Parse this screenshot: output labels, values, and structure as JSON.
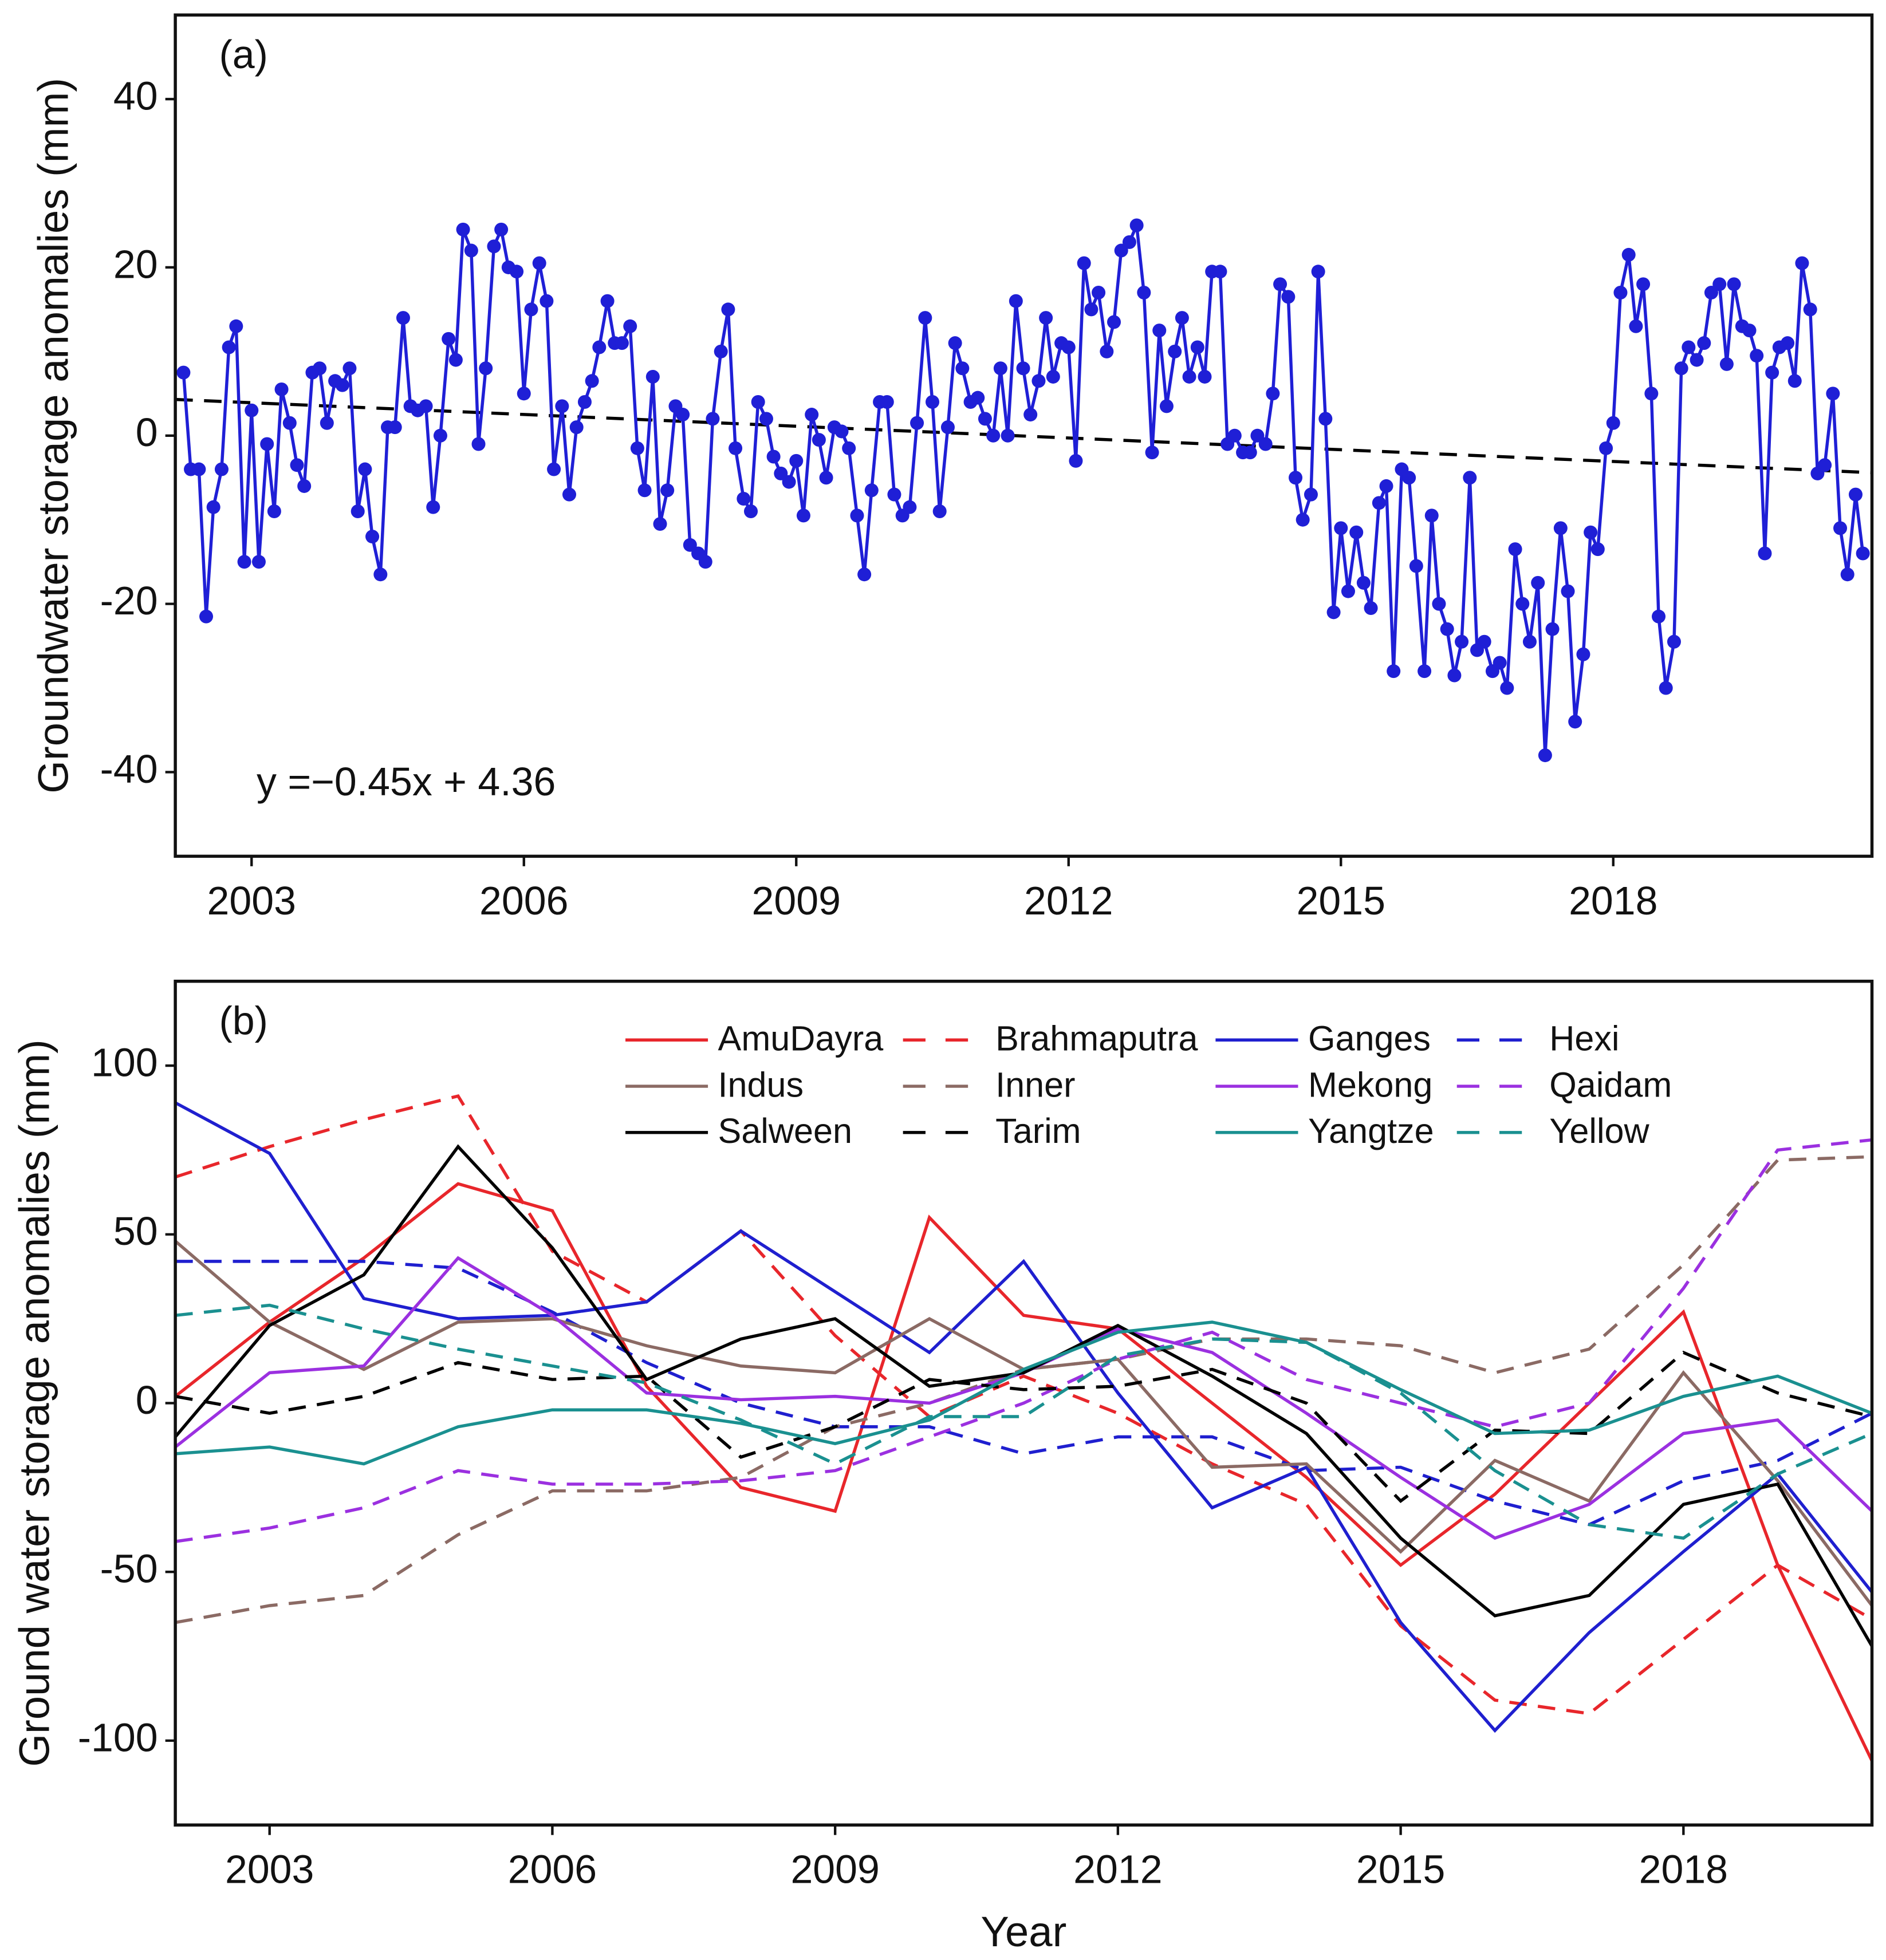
{
  "chart_data": [
    {
      "type": "line",
      "panel_label": "(a)",
      "ylabel": "Groundwater storage anomalies (mm)",
      "annotation": "y =−0.45x + 4.36",
      "color": "#1f1fd6",
      "markers": true,
      "xlim": [
        2002.16,
        2020.85
      ],
      "xticks": [
        2003,
        2006,
        2009,
        2012,
        2015,
        2018
      ],
      "ylim": [
        -50,
        50
      ],
      "yticks": [
        -40,
        -20,
        0,
        20,
        40
      ],
      "x": [
        2002.25,
        2002.33,
        2002.42,
        2002.5,
        2002.58,
        2002.67,
        2002.75,
        2002.83,
        2002.92,
        2003,
        2003.08,
        2003.17,
        2003.25,
        2003.33,
        2003.42,
        2003.5,
        2003.58,
        2003.67,
        2003.75,
        2003.83,
        2003.92,
        2004,
        2004.08,
        2004.17,
        2004.25,
        2004.33,
        2004.42,
        2004.5,
        2004.58,
        2004.67,
        2004.75,
        2004.83,
        2004.92,
        2005,
        2005.08,
        2005.17,
        2005.25,
        2005.33,
        2005.42,
        2005.5,
        2005.58,
        2005.67,
        2005.75,
        2005.83,
        2005.92,
        2006,
        2006.08,
        2006.17,
        2006.25,
        2006.33,
        2006.42,
        2006.5,
        2006.58,
        2006.67,
        2006.75,
        2006.83,
        2006.92,
        2007,
        2007.08,
        2007.17,
        2007.25,
        2007.33,
        2007.42,
        2007.5,
        2007.58,
        2007.67,
        2007.75,
        2007.83,
        2007.92,
        2008,
        2008.08,
        2008.17,
        2008.25,
        2008.33,
        2008.42,
        2008.5,
        2008.58,
        2008.67,
        2008.75,
        2008.83,
        2008.92,
        2009,
        2009.08,
        2009.17,
        2009.25,
        2009.33,
        2009.42,
        2009.5,
        2009.58,
        2009.67,
        2009.75,
        2009.83,
        2009.92,
        2010,
        2010.08,
        2010.17,
        2010.25,
        2010.33,
        2010.42,
        2010.5,
        2010.58,
        2010.67,
        2010.75,
        2010.83,
        2010.92,
        2011,
        2011.08,
        2011.17,
        2011.25,
        2011.33,
        2011.42,
        2011.5,
        2011.58,
        2011.67,
        2011.75,
        2011.83,
        2011.92,
        2012,
        2012.08,
        2012.17,
        2012.25,
        2012.33,
        2012.42,
        2012.5,
        2012.58,
        2012.67,
        2012.75,
        2012.83,
        2012.92,
        2013,
        2013.08,
        2013.17,
        2013.25,
        2013.33,
        2013.42,
        2013.5,
        2013.58,
        2013.67,
        2013.75,
        2013.83,
        2013.92,
        2014,
        2014.08,
        2014.17,
        2014.25,
        2014.33,
        2014.42,
        2014.5,
        2014.58,
        2014.67,
        2014.75,
        2014.83,
        2014.92,
        2015,
        2015.08,
        2015.17,
        2015.25,
        2015.33,
        2015.42,
        2015.5,
        2015.58,
        2015.67,
        2015.75,
        2015.83,
        2015.92,
        2016,
        2016.08,
        2016.17,
        2016.25,
        2016.33,
        2016.42,
        2016.5,
        2016.58,
        2016.67,
        2016.75,
        2016.83,
        2016.92,
        2017,
        2017.08,
        2017.17,
        2017.25,
        2017.33,
        2017.42,
        2017.5,
        2017.58,
        2017.67,
        2017.75,
        2017.83,
        2017.92,
        2018,
        2018.08,
        2018.17,
        2018.25,
        2018.33,
        2018.42,
        2018.5,
        2018.58,
        2018.67,
        2018.75,
        2018.83,
        2018.92,
        2019,
        2019.08,
        2019.17,
        2019.25,
        2019.33,
        2019.42,
        2019.5,
        2019.58,
        2019.67,
        2019.75,
        2019.83,
        2019.92,
        2020,
        2020.08,
        2020.17,
        2020.25,
        2020.33,
        2020.42,
        2020.5,
        2020.58,
        2020.67,
        2020.75
      ],
      "values": [
        7.5,
        -4,
        -4,
        -21.5,
        -8.5,
        -4,
        10.5,
        13,
        -15,
        3,
        -15,
        -1,
        -9,
        5.5,
        1.5,
        -3.5,
        -6,
        7.5,
        8,
        1.5,
        6.5,
        6,
        8,
        -9,
        -4,
        -12,
        -16.5,
        1,
        1,
        14,
        3.5,
        3,
        3.5,
        -8.5,
        0,
        11.5,
        9,
        24.5,
        22,
        -1,
        8,
        22.5,
        24.5,
        20,
        19.5,
        5,
        15,
        20.5,
        16,
        -4,
        3.5,
        -7,
        1,
        4,
        6.5,
        10.5,
        16,
        11,
        11,
        13,
        -1.5,
        -6.5,
        7,
        -10.5,
        -6.5,
        3.5,
        2.5,
        -13,
        -14,
        -15,
        2,
        10,
        15,
        -1.5,
        -7.5,
        -9,
        4,
        2,
        -2.5,
        -4.5,
        -5.5,
        -3,
        -9.5,
        2.5,
        -0.5,
        -5,
        1,
        0.5,
        -1.5,
        -9.5,
        -16.5,
        -6.5,
        4,
        4,
        -7,
        -9.5,
        -8.5,
        1.5,
        14,
        4,
        -9,
        1,
        11,
        8,
        4,
        4.5,
        2,
        0,
        8,
        0,
        16,
        8,
        2.5,
        6.5,
        14,
        7,
        11,
        10.5,
        -3,
        20.5,
        15,
        17,
        10,
        13.5,
        22,
        23,
        25,
        17,
        -2,
        12.5,
        3.5,
        10,
        14,
        7,
        10.5,
        7,
        19.5,
        19.5,
        -1,
        0,
        -2,
        -2,
        0,
        -1,
        5,
        18,
        16.5,
        -5,
        -10,
        -7,
        19.5,
        2,
        -21,
        -11,
        -18.5,
        -11.5,
        -17.5,
        -20.5,
        -8,
        -6,
        -28,
        -4,
        -5,
        -15.5,
        -28,
        -9.5,
        -20,
        -23,
        -28.5,
        -24.5,
        -5,
        -25.5,
        -24.5,
        -28,
        -27,
        -30,
        -13.5,
        -20,
        -24.5,
        -17.5,
        -38,
        -23,
        -11,
        -18.5,
        -34,
        -26,
        -11.5,
        -13.5,
        -1.5,
        1.5,
        17,
        21.5,
        13,
        18,
        5,
        -21.5,
        -30,
        -24.5,
        8,
        10.5,
        9,
        11,
        17,
        18,
        8.5,
        18,
        13,
        12.5,
        9.5,
        -14,
        7.5,
        10.5,
        11,
        6.5,
        20.5,
        15,
        -4.5,
        -3.5,
        5,
        -11,
        -16.5,
        -7,
        -14
      ],
      "trendline": {
        "x": [
          2002.16,
          2020.85
        ],
        "values": [
          4.3,
          -4.4
        ],
        "color": "#000000",
        "linestyle": "dashed"
      }
    },
    {
      "type": "line",
      "panel_label": "(b)",
      "ylabel": "Ground water storage anomalies (mm)",
      "xlabel": "Year",
      "xlim": [
        2002,
        2020
      ],
      "xticks": [
        2003,
        2006,
        2009,
        2012,
        2015,
        2018
      ],
      "ylim": [
        -125,
        125
      ],
      "yticks": [
        -100,
        -50,
        0,
        50,
        100
      ],
      "legend": "top",
      "x": [
        2002,
        2003,
        2004,
        2005,
        2006,
        2007,
        2008,
        2009,
        2010,
        2011,
        2012,
        2013,
        2014,
        2015,
        2016,
        2017,
        2018,
        2019,
        2020
      ],
      "series": [
        {
          "name": "AmuDayra",
          "color": "#e8262b",
          "linestyle": "solid",
          "values": [
            2,
            24,
            43,
            65,
            57,
            5,
            -25,
            -32,
            55,
            26,
            22,
            0,
            -22,
            -48,
            -27,
            0,
            27,
            -48,
            -106
          ]
        },
        {
          "name": "Brahmaputra",
          "color": "#e8262b",
          "linestyle": "dashed",
          "values": [
            67,
            76,
            84,
            91,
            45,
            30,
            51,
            20,
            -4,
            8,
            -3,
            -18,
            -30,
            -66,
            -88,
            -92,
            -70,
            -48,
            -64
          ]
        },
        {
          "name": "Ganges",
          "color": "#1f1fcf",
          "linestyle": "solid",
          "values": [
            89,
            74,
            31,
            25,
            26,
            30,
            51,
            33,
            15,
            42,
            3,
            -31,
            -19,
            -65,
            -97,
            -68,
            -44,
            -21,
            -56
          ]
        },
        {
          "name": "Hexi",
          "color": "#1f1fcf",
          "linestyle": "dashed",
          "values": [
            42,
            42,
            42,
            40,
            27,
            12,
            0,
            -7,
            -7,
            -15,
            -10,
            -10,
            -20,
            -19,
            -29,
            -36,
            -23,
            -17,
            -3
          ]
        },
        {
          "name": "Indus",
          "color": "#8b6a64",
          "linestyle": "solid",
          "values": [
            48,
            24,
            10,
            24,
            25,
            17,
            11,
            9,
            25,
            10,
            13,
            -19,
            -18,
            -44,
            -17,
            -29,
            9,
            -23,
            -60
          ]
        },
        {
          "name": "Inner",
          "color": "#8b6a64",
          "linestyle": "dashed",
          "values": [
            -65,
            -60,
            -57,
            -39,
            -26,
            -26,
            -22,
            -7,
            0,
            10,
            13,
            19,
            19,
            17,
            9,
            16,
            41,
            72,
            73
          ]
        },
        {
          "name": "Mekong",
          "color": "#9b30e0",
          "linestyle": "solid",
          "values": [
            -13,
            9,
            11,
            43,
            26,
            3,
            1,
            2,
            0,
            9,
            22,
            15,
            -3,
            -22,
            -40,
            -30,
            -9,
            -5,
            -32
          ]
        },
        {
          "name": "Qaidam",
          "color": "#9b30e0",
          "linestyle": "dashed",
          "values": [
            -41,
            -37,
            -31,
            -20,
            -24,
            -24,
            -23,
            -20,
            -10,
            0,
            13,
            21,
            7,
            0,
            -7,
            0,
            34,
            75,
            78
          ]
        },
        {
          "name": "Salween",
          "color": "#000000",
          "linestyle": "solid",
          "values": [
            -10,
            23,
            38,
            76,
            46,
            7,
            19,
            25,
            5,
            9,
            23,
            8,
            -9,
            -40,
            -63,
            -57,
            -30,
            -24,
            -72
          ]
        },
        {
          "name": "Tarim",
          "color": "#000000",
          "linestyle": "dashed",
          "values": [
            2,
            -3,
            2,
            12,
            7,
            8,
            -16,
            -7,
            7,
            4,
            5,
            10,
            0,
            -29,
            -8,
            -9,
            15,
            3,
            -4
          ]
        },
        {
          "name": "Yangtze",
          "color": "#1a9090",
          "linestyle": "solid",
          "values": [
            -15,
            -13,
            -18,
            -7,
            -2,
            -2,
            -6,
            -12,
            -5,
            10,
            21,
            24,
            18,
            4,
            -9,
            -8,
            2,
            8,
            -3
          ]
        },
        {
          "name": "Yellow",
          "color": "#1a9090",
          "linestyle": "dashed",
          "values": [
            26,
            29,
            22,
            16,
            11,
            6,
            -5,
            -18,
            -4,
            -4,
            14,
            19,
            18,
            3,
            -20,
            -36,
            -40,
            -21,
            -9
          ]
        }
      ]
    }
  ]
}
